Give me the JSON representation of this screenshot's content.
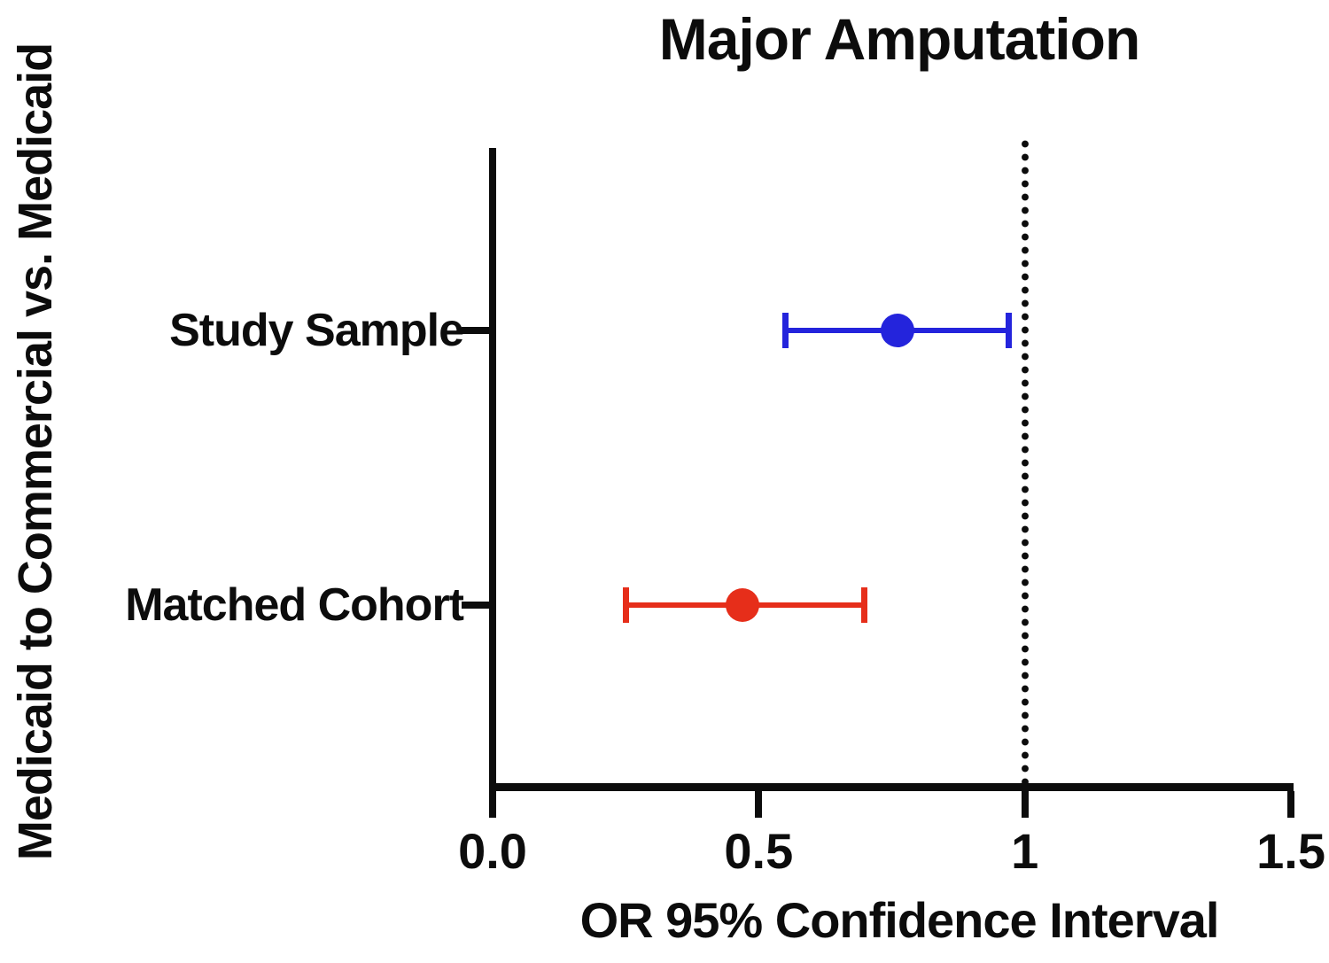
{
  "title": "Major Amputation",
  "axis": {
    "x_label": "OR 95% Confidence Interval",
    "y_label": "Medicaid to Commercial vs. Medicaid"
  },
  "chart_data": {
    "type": "scatter",
    "subtype": "forest-plot",
    "title": "Major Amputation",
    "xlabel": "OR 95% Confidence Interval",
    "ylabel": "Medicaid to Commercial vs. Medicaid",
    "xlim": [
      0,
      1.5
    ],
    "x_tick_values": [
      0,
      0.5,
      1,
      1.5
    ],
    "x_tick_labels": [
      "0.0",
      "0.5",
      "1",
      "1.5"
    ],
    "reference_line_x": 1,
    "reference_line_style": "dotted",
    "grid": false,
    "legend": "none",
    "categories": [
      "Study Sample",
      "Matched Cohort"
    ],
    "series": [
      {
        "name": "Study Sample",
        "or": 0.76,
        "ci_low": 0.55,
        "ci_high": 0.97,
        "color": "#2424DC"
      },
      {
        "name": "Matched Cohort",
        "or": 0.47,
        "ci_low": 0.25,
        "ci_high": 0.7,
        "color": "#E62E1A"
      }
    ]
  }
}
